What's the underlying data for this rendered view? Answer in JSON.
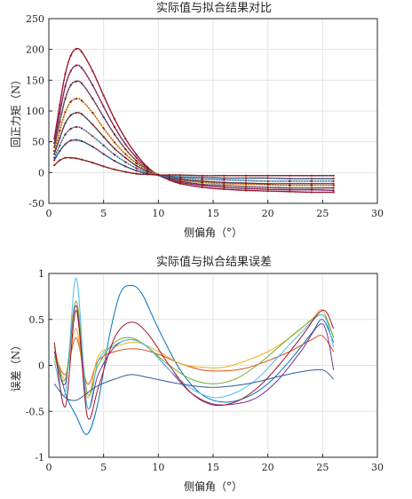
{
  "chart_data": [
    {
      "type": "line",
      "title": "实际值与拟合结果对比",
      "xlabel": "侧偏角（°）",
      "ylabel": "回正力矩（N）",
      "xlim": [
        0,
        30
      ],
      "ylim": [
        -50,
        250
      ],
      "xticks": [
        0,
        5,
        10,
        15,
        20,
        25,
        30
      ],
      "yticks": [
        -50,
        0,
        50,
        100,
        150,
        200,
        250
      ],
      "xtick_labels": [
        "0",
        "5",
        "10",
        "15",
        "20",
        "25",
        "30"
      ],
      "ytick_labels": [
        "-50",
        "0",
        "50",
        "100",
        "150",
        "200",
        "250"
      ],
      "grid": true,
      "legend": "none",
      "note": "each curve drawn as solid fitted line with dotted actual-value markers",
      "x": [
        0.5,
        1,
        1.5,
        2,
        2.5,
        3,
        4,
        5,
        6,
        7,
        8,
        9,
        10,
        11,
        12,
        14,
        16,
        18,
        20,
        22,
        24,
        26
      ],
      "series": [
        {
          "color": "#A2142F",
          "values": [
            55,
            110,
            160,
            190,
            201,
            196,
            165,
            125,
            87,
            55,
            29,
            9,
            -4,
            -12,
            -18,
            -24,
            -27,
            -29,
            -30,
            -31,
            -32,
            -32
          ]
        },
        {
          "color": "#7E2F8E",
          "values": [
            48,
            96,
            140,
            165,
            174,
            170,
            142,
            107,
            74,
            46,
            24,
            7,
            -4,
            -11,
            -16,
            -21,
            -24,
            -26,
            -27,
            -28,
            -28,
            -29
          ]
        },
        {
          "color": "#4E5D7E",
          "values": [
            42,
            82,
            120,
            142,
            148,
            145,
            120,
            90,
            62,
            38,
            19,
            5,
            -4,
            -10,
            -14,
            -19,
            -21,
            -23,
            -24,
            -25,
            -25,
            -25
          ]
        },
        {
          "color": "#EDB120",
          "values": [
            35,
            68,
            98,
            115,
            120,
            117,
            97,
            72,
            49,
            30,
            15,
            4,
            -3,
            -8,
            -12,
            -16,
            -18,
            -19,
            -20,
            -21,
            -21,
            -21
          ]
        },
        {
          "color": "#3A4F6B",
          "values": [
            30,
            56,
            80,
            93,
            97,
            95,
            78,
            58,
            39,
            24,
            11,
            2,
            -4,
            -8,
            -11,
            -14,
            -16,
            -17,
            -18,
            -18,
            -18,
            -18
          ]
        },
        {
          "color": "#4DBEEE",
          "values": [
            24,
            44,
            62,
            71,
            74,
            72,
            59,
            44,
            29,
            17,
            7,
            0,
            -4,
            -7,
            -9,
            -11,
            -12,
            -13,
            -14,
            -14,
            -14,
            -14
          ]
        },
        {
          "color": "#0072BD",
          "values": [
            20,
            35,
            46,
            52,
            53,
            51,
            42,
            30,
            19,
            10,
            3,
            -2,
            -4,
            -6,
            -7,
            -8,
            -9,
            -9,
            -9,
            -10,
            -10,
            -10
          ]
        },
        {
          "color": "#8B1A1A",
          "values": [
            12,
            20,
            24,
            24,
            23,
            21,
            16,
            10,
            5,
            1,
            -2,
            -3,
            -4,
            -4,
            -4,
            -5,
            -5,
            -5,
            -5,
            -5,
            -5,
            -5
          ]
        }
      ]
    },
    {
      "type": "line",
      "title": "实际值与拟合结果误差",
      "xlabel": "侧偏角（°）",
      "ylabel": "误差（N）",
      "xlim": [
        0,
        30
      ],
      "ylim": [
        -1,
        1
      ],
      "xticks": [
        0,
        5,
        10,
        15,
        20,
        25,
        30
      ],
      "yticks": [
        -1,
        -0.5,
        0,
        0.5,
        1
      ],
      "xtick_labels": [
        "0",
        "5",
        "10",
        "15",
        "20",
        "25",
        "30"
      ],
      "ytick_labels": [
        "-1",
        "-0.5",
        "0",
        "0.5",
        "1"
      ],
      "grid": true,
      "legend": "none",
      "series": [
        {
          "color": "#0072BD",
          "x": [
            0.5,
            1.5,
            2.5,
            3.5,
            4.5,
            5.5,
            6.5,
            7.5,
            8.5,
            10,
            12,
            14,
            16,
            18,
            20,
            22,
            24,
            25,
            26
          ],
          "values": [
            0.2,
            -0.3,
            -0.55,
            -0.75,
            -0.4,
            0.3,
            0.78,
            0.87,
            0.78,
            0.4,
            -0.05,
            -0.32,
            -0.4,
            -0.35,
            -0.2,
            0.05,
            0.35,
            0.5,
            0.25
          ]
        },
        {
          "color": "#D95319",
          "x": [
            0.5,
            1.5,
            2.5,
            3.5,
            4.5,
            6,
            8,
            10,
            12,
            14,
            16,
            18,
            20,
            22,
            24,
            25,
            26
          ],
          "values": [
            0.15,
            -0.1,
            0.3,
            -0.2,
            0.05,
            0.15,
            0.18,
            0.12,
            0.02,
            -0.05,
            -0.06,
            -0.03,
            0.05,
            0.15,
            0.28,
            0.32,
            0.15
          ]
        },
        {
          "color": "#EDB120",
          "x": [
            0.5,
            1.5,
            2.5,
            3.5,
            4.5,
            6,
            8,
            10,
            12,
            14,
            16,
            18,
            20,
            22,
            24,
            25,
            26
          ],
          "values": [
            0.2,
            -0.15,
            0.4,
            -0.35,
            0.1,
            0.2,
            0.25,
            0.15,
            0.02,
            -0.02,
            -0.02,
            0.05,
            0.15,
            0.3,
            0.5,
            0.6,
            0.3
          ]
        },
        {
          "color": "#7E2F8E",
          "x": [
            0.5,
            1.5,
            2.5,
            3.5,
            4.5,
            6,
            7.5,
            9,
            11,
            13,
            15,
            17,
            19,
            21,
            23,
            25,
            26
          ],
          "values": [
            0.15,
            -0.2,
            0.65,
            -0.45,
            -0.1,
            0.2,
            0.28,
            0.2,
            -0.05,
            -0.3,
            -0.42,
            -0.42,
            -0.35,
            -0.15,
            0.15,
            0.45,
            -0.05
          ]
        },
        {
          "color": "#77AC30",
          "x": [
            0.5,
            1.5,
            2.5,
            3.5,
            4.5,
            6,
            7.5,
            9,
            11,
            13,
            15,
            17,
            19,
            21,
            23,
            25,
            26
          ],
          "values": [
            0.1,
            -0.15,
            0.7,
            -0.3,
            0.0,
            0.25,
            0.3,
            0.2,
            0.0,
            -0.15,
            -0.2,
            -0.15,
            0.0,
            0.2,
            0.4,
            0.55,
            0.3
          ]
        },
        {
          "color": "#4DBEEE",
          "x": [
            0.5,
            1.5,
            2.5,
            3.5,
            4.5,
            6,
            7.5,
            9,
            11,
            13,
            15,
            17,
            19,
            21,
            23,
            25,
            26
          ],
          "values": [
            0.05,
            -0.3,
            0.95,
            -0.45,
            0.05,
            0.22,
            0.28,
            0.2,
            -0.05,
            -0.25,
            -0.35,
            -0.3,
            -0.15,
            0.1,
            0.35,
            0.55,
            0.2
          ]
        },
        {
          "color": "#A2142F",
          "x": [
            0.5,
            1.5,
            2.5,
            3.5,
            4.5,
            6,
            7.5,
            9,
            11,
            13,
            15,
            17,
            19,
            21,
            23,
            25,
            26
          ],
          "values": [
            0.25,
            -0.45,
            0.6,
            -0.55,
            -0.25,
            0.3,
            0.47,
            0.35,
            0.0,
            -0.3,
            -0.43,
            -0.4,
            -0.25,
            0.0,
            0.3,
            0.6,
            0.4
          ]
        },
        {
          "color": "#2E5C9A",
          "x": [
            0.5,
            1.5,
            2.5,
            3.5,
            4.5,
            6,
            7.5,
            9,
            11,
            13,
            15,
            17,
            19,
            21,
            23,
            25,
            26
          ],
          "values": [
            -0.2,
            -0.35,
            -0.38,
            -0.3,
            -0.22,
            -0.15,
            -0.1,
            -0.13,
            -0.18,
            -0.22,
            -0.24,
            -0.22,
            -0.18,
            -0.12,
            -0.07,
            -0.05,
            -0.15
          ]
        }
      ]
    }
  ]
}
